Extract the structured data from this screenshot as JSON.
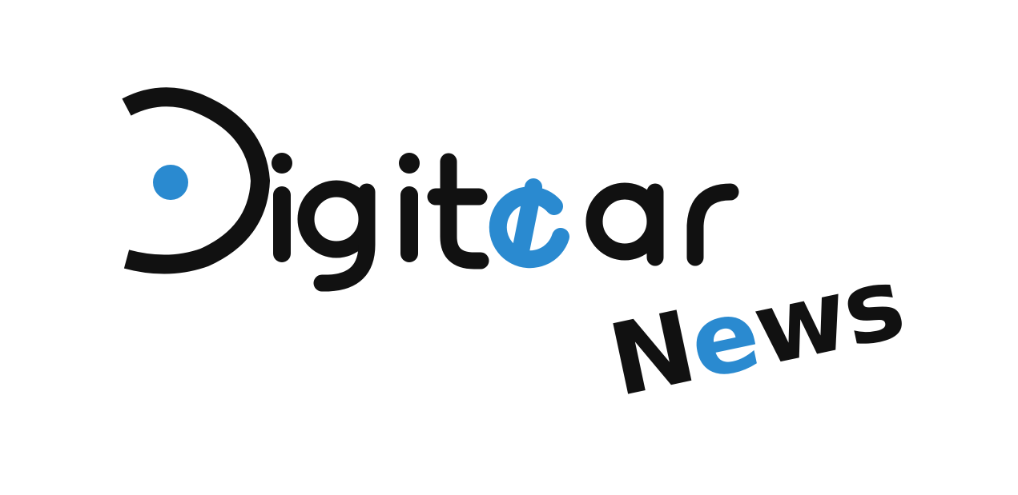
{
  "logo": {
    "wordmark": "Digitear",
    "tagline": "News",
    "colors": {
      "ink": "#111111",
      "accent": "#2a8ad0",
      "background": "#ffffff"
    }
  }
}
